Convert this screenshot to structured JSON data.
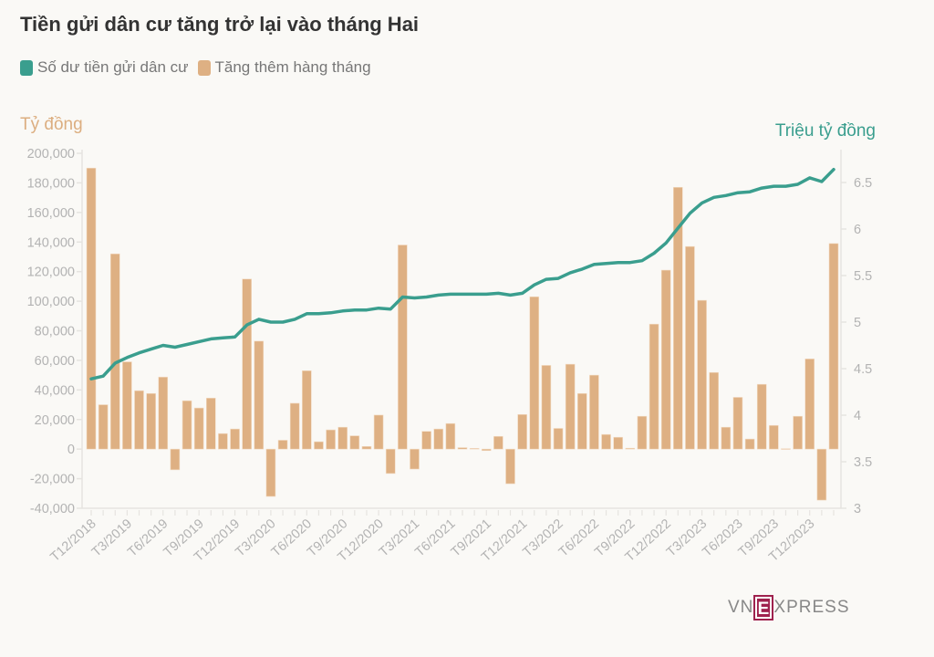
{
  "chart_data": {
    "type": "bar+line",
    "title": "Tiền gửi dân cư tăng trở lại vào tháng Hai",
    "legend": [
      {
        "label": "Số dư tiền gửi dân cư",
        "color": "#3a9e8e",
        "type": "line"
      },
      {
        "label": "Tăng thêm hàng tháng",
        "color": "#deb083",
        "type": "bar"
      }
    ],
    "legend_position": "top-left",
    "ylabel_left": "Tỷ đồng",
    "ylabel_right": "Triệu tỷ đồng",
    "ylim_left": [
      -40000,
      200000
    ],
    "ylim_right": [
      3,
      6.75
    ],
    "yticks_left": [
      "200,000",
      "180,000",
      "160,000",
      "140,000",
      "120,000",
      "100,000",
      "80,000",
      "60,000",
      "40,000",
      "20,000",
      "0",
      "-20,000",
      "-40,000"
    ],
    "yticks_left_values": [
      200000,
      180000,
      160000,
      140000,
      120000,
      100000,
      80000,
      60000,
      40000,
      20000,
      0,
      -20000,
      -40000
    ],
    "yticks_right": [
      "6.5",
      "6",
      "5.5",
      "5",
      "4.5",
      "4",
      "3.5",
      "3"
    ],
    "yticks_right_values": [
      6.5,
      6,
      5.5,
      5,
      4.5,
      4,
      3.5,
      3
    ],
    "xtick_labels": [
      "T12/2018",
      "T3/2019",
      "T6/2019",
      "T9/2019",
      "T12/2019",
      "T3/2020",
      "T6/2020",
      "T9/2020",
      "T12/2020",
      "T3/2021",
      "T6/2021",
      "T9/2021",
      "T12/2021",
      "T3/2022",
      "T6/2022",
      "T9/2022",
      "T12/2022",
      "T3/2023",
      "T6/2023",
      "T9/2023",
      "T12/2023"
    ],
    "xtick_every": 3,
    "categories_count": 63,
    "series": [
      {
        "name": "Tăng thêm hàng tháng",
        "type": "bar",
        "axis": "left",
        "values": [
          190000,
          30000,
          132000,
          59000,
          39500,
          37600,
          48700,
          -14000,
          32700,
          27800,
          34500,
          10500,
          13600,
          115000,
          73000,
          -32000,
          6000,
          31000,
          53000,
          5000,
          13000,
          14800,
          9000,
          1800,
          23000,
          -16500,
          138000,
          -13500,
          12000,
          13600,
          17300,
          1000,
          500,
          -1000,
          8600,
          -23400,
          23400,
          103000,
          56600,
          14000,
          57400,
          37600,
          50000,
          9900,
          8000,
          600,
          22200,
          84500,
          121000,
          177000,
          137000,
          100600,
          51800,
          14800,
          35000,
          6800,
          43800,
          16000,
          300,
          22200,
          61000,
          -34500,
          139000
        ]
      },
      {
        "name": "Số dư tiền gửi dân cư",
        "type": "line",
        "axis": "right",
        "values": [
          4.39,
          4.42,
          4.56,
          4.62,
          4.67,
          4.71,
          4.75,
          4.73,
          4.76,
          4.79,
          4.82,
          4.83,
          4.84,
          4.97,
          5.03,
          5.0,
          5.0,
          5.03,
          5.09,
          5.09,
          5.1,
          5.12,
          5.13,
          5.13,
          5.15,
          5.14,
          5.27,
          5.26,
          5.27,
          5.29,
          5.3,
          5.3,
          5.3,
          5.3,
          5.31,
          5.29,
          5.31,
          5.4,
          5.46,
          5.47,
          5.53,
          5.57,
          5.62,
          5.63,
          5.64,
          5.64,
          5.66,
          5.74,
          5.85,
          6.01,
          6.17,
          6.28,
          6.34,
          6.36,
          6.39,
          6.4,
          6.44,
          6.46,
          6.46,
          6.48,
          6.55,
          6.51,
          6.64
        ]
      }
    ],
    "grid": false
  },
  "branding": {
    "logo_prefix": "VN",
    "logo_mark": "E",
    "logo_suffix": "XPRESS"
  }
}
